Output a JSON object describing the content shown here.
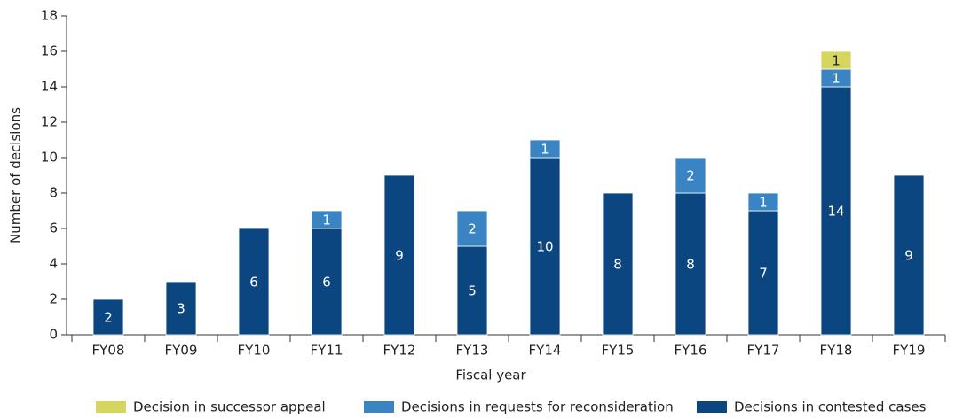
{
  "chart_data": {
    "type": "stacked_bar",
    "categories": [
      "FY08",
      "FY09",
      "FY10",
      "FY11",
      "FY12",
      "FY13",
      "FY14",
      "FY15",
      "FY16",
      "FY17",
      "FY18",
      "FY19"
    ],
    "series": [
      {
        "name": "Decisions in contested cases",
        "color": "#0b4680",
        "values": [
          2,
          3,
          6,
          6,
          9,
          5,
          10,
          8,
          8,
          7,
          14,
          9
        ]
      },
      {
        "name": "Decisions in requests for reconsideration",
        "color": "#3a84c4",
        "values": [
          null,
          null,
          null,
          1,
          null,
          2,
          1,
          null,
          2,
          1,
          1,
          null
        ]
      },
      {
        "name": "Decision in successor appeal",
        "color": "#d6d65e",
        "values": [
          null,
          null,
          null,
          null,
          null,
          null,
          null,
          null,
          null,
          null,
          1,
          null
        ]
      }
    ],
    "x_label": "Fiscal year",
    "y_label": "Number of decisions",
    "ylim": [
      0,
      18
    ],
    "yticks": [
      0,
      2,
      4,
      6,
      8,
      10,
      12,
      14,
      16,
      18
    ]
  }
}
